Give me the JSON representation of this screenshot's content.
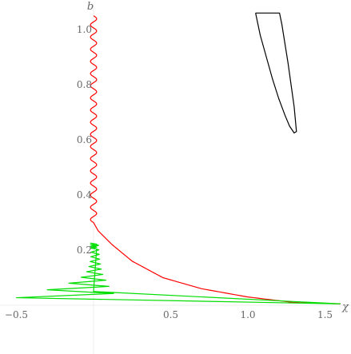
{
  "chart_data": {
    "type": "line",
    "title": "",
    "xlabel": "χ",
    "ylabel": "b",
    "xlim": [
      -0.5,
      1.6
    ],
    "ylim": [
      0,
      1.05
    ],
    "grid": false,
    "x_ticks": [
      {
        "value": -0.5,
        "label": "−0.5"
      },
      {
        "value": 0.5,
        "label": "0.5"
      },
      {
        "value": 1.0,
        "label": "1.0"
      },
      {
        "value": 1.5,
        "label": "1.5"
      }
    ],
    "y_ticks": [
      {
        "value": 0.2,
        "label": "0.2"
      },
      {
        "value": 0.4,
        "label": "0.4"
      },
      {
        "value": 0.6,
        "label": "0.6"
      },
      {
        "value": 0.8,
        "label": "0.8"
      },
      {
        "value": 1.0,
        "label": "1.0"
      }
    ],
    "series": [
      {
        "color": "#ff0000",
        "kind": "wiggle",
        "points": [
          [
            0.0,
            1.05
          ],
          [
            0.0,
            0.3
          ],
          [
            0.03,
            0.27
          ],
          [
            0.12,
            0.22
          ],
          [
            0.25,
            0.16
          ],
          [
            0.45,
            0.1
          ],
          [
            0.7,
            0.06
          ],
          [
            1.0,
            0.03
          ],
          [
            1.3,
            0.01
          ],
          [
            1.6,
            0.005
          ]
        ],
        "wiggle_until": 0.27,
        "wiggle_amp": 0.02,
        "wiggle_cycles": 17
      },
      {
        "color": "#00dd00",
        "kind": "spiral",
        "top": 0.225,
        "bottom": 0.005,
        "tip_x": 1.6,
        "left_extremes": [
          -0.5,
          -0.3,
          -0.16,
          -0.08,
          -0.045,
          -0.03,
          -0.022,
          -0.018,
          -0.015,
          -0.013,
          -0.012
        ],
        "right_extremes": [
          0.13,
          0.1,
          0.08,
          0.06,
          0.05,
          0.045,
          0.04,
          0.037,
          0.035,
          0.033
        ]
      },
      {
        "color": "#000000",
        "kind": "closed",
        "points": [
          [
            1.05,
            1.06
          ],
          [
            1.08,
            0.98
          ],
          [
            1.12,
            0.9
          ],
          [
            1.16,
            0.82
          ],
          [
            1.2,
            0.75
          ],
          [
            1.24,
            0.69
          ],
          [
            1.27,
            0.65
          ],
          [
            1.3,
            0.625
          ],
          [
            1.315,
            0.63
          ],
          [
            1.31,
            0.66
          ],
          [
            1.3,
            0.72
          ],
          [
            1.28,
            0.8
          ],
          [
            1.26,
            0.88
          ],
          [
            1.24,
            0.95
          ],
          [
            1.22,
            1.02
          ],
          [
            1.205,
            1.06
          ]
        ]
      }
    ]
  }
}
